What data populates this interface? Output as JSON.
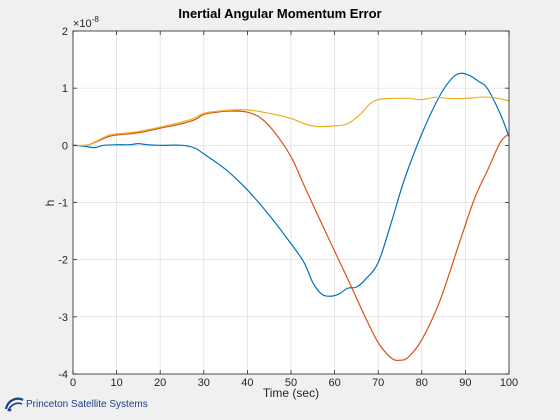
{
  "chart_data": {
    "type": "line",
    "title": "Inertial Angular Momentum Error",
    "xlabel": "Time (sec)",
    "ylabel": "h",
    "scale_exponent_label": "×10",
    "scale_exponent_power": "-8",
    "xlim": [
      0,
      100
    ],
    "ylim": [
      -4,
      2
    ],
    "xticks": [
      "0",
      "10",
      "20",
      "30",
      "40",
      "50",
      "60",
      "70",
      "80",
      "90",
      "100"
    ],
    "yticks": [
      "2",
      "1",
      "0",
      "-1",
      "-2",
      "-3",
      "-4"
    ],
    "grid": true,
    "series": [
      {
        "color": "#0072bd",
        "x": [
          0,
          3,
          5,
          7,
          10,
          13,
          15,
          17,
          20,
          25,
          28,
          30,
          35,
          40,
          45,
          50,
          53,
          55,
          57,
          59,
          61,
          63,
          65,
          67,
          70,
          73,
          76,
          80,
          84,
          87,
          89,
          91,
          93,
          95,
          98,
          100
        ],
        "y": [
          0,
          -0.02,
          -0.04,
          0,
          0.01,
          0.01,
          0.03,
          0.01,
          0,
          0,
          -0.05,
          -0.15,
          -0.42,
          -0.78,
          -1.22,
          -1.72,
          -2.05,
          -2.4,
          -2.6,
          -2.64,
          -2.6,
          -2.5,
          -2.48,
          -2.35,
          -2.05,
          -1.35,
          -0.6,
          0.2,
          0.85,
          1.18,
          1.26,
          1.22,
          1.12,
          1.0,
          0.55,
          0.15
        ]
      },
      {
        "color": "#d95319",
        "x": [
          0,
          3,
          5,
          8,
          10,
          15,
          20,
          25,
          28,
          30,
          33,
          36,
          40,
          43,
          46,
          50,
          53,
          56,
          60,
          64,
          67,
          70,
          73,
          75,
          77,
          80,
          84,
          88,
          92,
          95,
          98,
          100
        ],
        "y": [
          0,
          0,
          0.05,
          0.15,
          0.18,
          0.22,
          0.3,
          0.38,
          0.45,
          0.54,
          0.58,
          0.6,
          0.58,
          0.48,
          0.25,
          -0.2,
          -0.7,
          -1.2,
          -1.85,
          -2.5,
          -3.0,
          -3.45,
          -3.72,
          -3.76,
          -3.7,
          -3.4,
          -2.75,
          -1.85,
          -0.95,
          -0.45,
          0.05,
          0.2
        ]
      },
      {
        "color": "#edb120",
        "x": [
          0,
          3,
          5,
          8,
          10,
          15,
          20,
          25,
          28,
          30,
          35,
          40,
          45,
          50,
          53,
          56,
          60,
          63,
          66,
          68,
          70,
          73,
          77,
          80,
          83,
          86,
          90,
          93,
          96,
          100
        ],
        "y": [
          0,
          0,
          0.06,
          0.17,
          0.2,
          0.24,
          0.32,
          0.41,
          0.48,
          0.56,
          0.61,
          0.62,
          0.56,
          0.47,
          0.38,
          0.33,
          0.34,
          0.38,
          0.55,
          0.72,
          0.8,
          0.82,
          0.82,
          0.8,
          0.84,
          0.82,
          0.82,
          0.84,
          0.84,
          0.78
        ]
      }
    ]
  },
  "footer": {
    "company_name": "Princeton Satellite Systems",
    "logo_icon": "psslogo-icon"
  }
}
